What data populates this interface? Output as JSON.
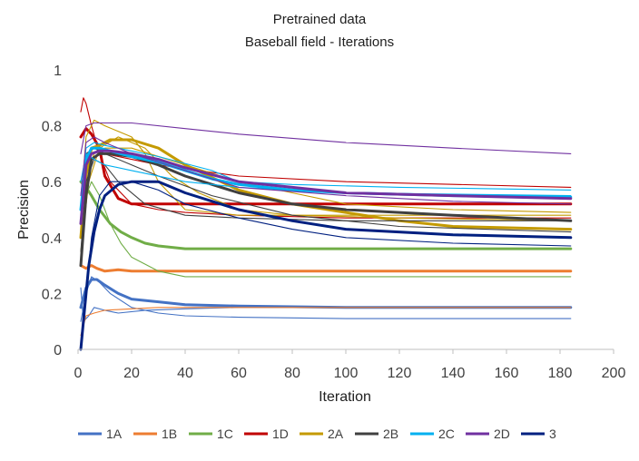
{
  "chart_data": {
    "type": "line",
    "title": "Pretrained data",
    "subtitle": "Baseball field - Iterations",
    "xlabel": "Iteration",
    "ylabel": "Precision",
    "xlim": [
      0,
      200
    ],
    "ylim": [
      0,
      1
    ],
    "x_ticks": [
      "0",
      "20",
      "40",
      "60",
      "80",
      "100",
      "120",
      "140",
      "160",
      "180",
      "200"
    ],
    "y_ticks": [
      "0",
      "0.2",
      "0.4",
      "0.6",
      "0.8",
      "1"
    ],
    "grid": false,
    "legend_position": "bottom",
    "series": [
      {
        "name": "1A",
        "color": "#4472C4",
        "runs": [
          {
            "x": [
              1,
              3,
              5,
              7,
              10,
              15,
              20,
              30,
              40,
              60,
              100,
              140,
              184
            ],
            "y": [
              0.15,
              0.22,
              0.25,
              0.25,
              0.23,
              0.2,
              0.18,
              0.17,
              0.16,
              0.155,
              0.15,
              0.15,
              0.15
            ],
            "emphasis": true
          },
          {
            "x": [
              1,
              3,
              5,
              8,
              12,
              20,
              30,
              40,
              60,
              100,
              184
            ],
            "y": [
              0.1,
              0.2,
              0.26,
              0.24,
              0.2,
              0.15,
              0.13,
              0.12,
              0.115,
              0.11,
              0.11
            ]
          },
          {
            "x": [
              1,
              2,
              4,
              6,
              10,
              15,
              25,
              40,
              60,
              100,
              184
            ],
            "y": [
              0.22,
              0.1,
              0.12,
              0.15,
              0.14,
              0.13,
              0.14,
              0.145,
              0.15,
              0.15,
              0.15
            ]
          }
        ]
      },
      {
        "name": "1B",
        "color": "#ED7D31",
        "runs": [
          {
            "x": [
              1,
              3,
              5,
              7,
              10,
              15,
              20,
              30,
              50,
              100,
              184
            ],
            "y": [
              0.3,
              0.29,
              0.3,
              0.29,
              0.28,
              0.285,
              0.28,
              0.28,
              0.28,
              0.28,
              0.28
            ],
            "emphasis": true
          },
          {
            "x": [
              1,
              3,
              6,
              10,
              20,
              30,
              50,
              100,
              184
            ],
            "y": [
              0.05,
              0.12,
              0.13,
              0.14,
              0.145,
              0.15,
              0.15,
              0.15,
              0.15
            ]
          }
        ]
      },
      {
        "name": "1C",
        "color": "#70AD47",
        "runs": [
          {
            "x": [
              1,
              3,
              5,
              8,
              12,
              16,
              20,
              25,
              30,
              40,
              60,
              100,
              184
            ],
            "y": [
              0.6,
              0.58,
              0.55,
              0.5,
              0.45,
              0.42,
              0.4,
              0.38,
              0.37,
              0.36,
              0.36,
              0.36,
              0.36
            ],
            "emphasis": true
          },
          {
            "x": [
              1,
              3,
              5,
              8,
              12,
              16,
              20,
              30,
              40,
              50,
              60,
              184
            ],
            "y": [
              0.3,
              0.55,
              0.6,
              0.55,
              0.45,
              0.38,
              0.33,
              0.28,
              0.26,
              0.26,
              0.26,
              0.26
            ]
          }
        ]
      },
      {
        "name": "1D",
        "color": "#C00000",
        "runs": [
          {
            "x": [
              1,
              3,
              5,
              8,
              10,
              15,
              20,
              30,
              50,
              100,
              184
            ],
            "y": [
              0.76,
              0.79,
              0.77,
              0.72,
              0.62,
              0.54,
              0.52,
              0.52,
              0.52,
              0.52,
              0.52
            ],
            "emphasis": true
          },
          {
            "x": [
              1,
              2,
              3,
              5,
              8,
              12,
              20,
              30,
              40,
              60,
              100,
              184
            ],
            "y": [
              0.85,
              0.9,
              0.88,
              0.8,
              0.7,
              0.6,
              0.52,
              0.5,
              0.49,
              0.48,
              0.47,
              0.47
            ]
          },
          {
            "x": [
              1,
              3,
              6,
              10,
              20,
              30,
              60,
              100,
              184
            ],
            "y": [
              0.4,
              0.7,
              0.72,
              0.7,
              0.68,
              0.66,
              0.62,
              0.6,
              0.58
            ]
          }
        ]
      },
      {
        "name": "2A",
        "color": "#C49A00",
        "runs": [
          {
            "x": [
              1,
              3,
              5,
              8,
              12,
              20,
              30,
              40,
              60,
              80,
              100,
              120,
              140,
              184
            ],
            "y": [
              0.4,
              0.62,
              0.72,
              0.73,
              0.75,
              0.75,
              0.72,
              0.66,
              0.57,
              0.52,
              0.49,
              0.46,
              0.44,
              0.43
            ],
            "emphasis": true
          },
          {
            "x": [
              1,
              3,
              6,
              10,
              15,
              20,
              25,
              30,
              40,
              60,
              100,
              184
            ],
            "y": [
              0.5,
              0.76,
              0.82,
              0.8,
              0.78,
              0.76,
              0.7,
              0.6,
              0.5,
              0.48,
              0.48,
              0.48
            ]
          },
          {
            "x": [
              1,
              3,
              6,
              10,
              20,
              40,
              60,
              80,
              100,
              140,
              184
            ],
            "y": [
              0.45,
              0.62,
              0.7,
              0.72,
              0.72,
              0.66,
              0.6,
              0.56,
              0.52,
              0.5,
              0.49
            ]
          },
          {
            "x": [
              1,
              4,
              8,
              15,
              25,
              35,
              45,
              60,
              80,
              120,
              184
            ],
            "y": [
              0.35,
              0.6,
              0.72,
              0.76,
              0.72,
              0.62,
              0.56,
              0.5,
              0.48,
              0.47,
              0.46
            ]
          }
        ]
      },
      {
        "name": "2B",
        "color": "#404040",
        "runs": [
          {
            "x": [
              1,
              3,
              5,
              8,
              12,
              20,
              30,
              40,
              60,
              80,
              100,
              140,
              184
            ],
            "y": [
              0.3,
              0.55,
              0.68,
              0.7,
              0.7,
              0.69,
              0.66,
              0.62,
              0.56,
              0.52,
              0.5,
              0.48,
              0.46
            ],
            "emphasis": true
          },
          {
            "x": [
              1,
              3,
              6,
              10,
              20,
              30,
              50,
              80,
              120,
              184
            ],
            "y": [
              0.5,
              0.7,
              0.72,
              0.7,
              0.66,
              0.62,
              0.55,
              0.48,
              0.44,
              0.42
            ]
          },
          {
            "x": [
              1,
              3,
              6,
              10,
              15,
              25,
              40,
              60,
              100,
              184
            ],
            "y": [
              0.35,
              0.6,
              0.68,
              0.66,
              0.6,
              0.52,
              0.48,
              0.47,
              0.46,
              0.46
            ]
          }
        ]
      },
      {
        "name": "2C",
        "color": "#00B0F0",
        "runs": [
          {
            "x": [
              1,
              3,
              5,
              8,
              12,
              20,
              30,
              40,
              50,
              60,
              80,
              100,
              140,
              184
            ],
            "y": [
              0.5,
              0.68,
              0.72,
              0.72,
              0.71,
              0.69,
              0.67,
              0.64,
              0.61,
              0.59,
              0.57,
              0.56,
              0.55,
              0.545
            ],
            "emphasis": true
          },
          {
            "x": [
              1,
              3,
              6,
              10,
              20,
              30,
              50,
              60,
              80,
              120,
              184
            ],
            "y": [
              0.55,
              0.72,
              0.74,
              0.73,
              0.71,
              0.69,
              0.64,
              0.6,
              0.59,
              0.58,
              0.57
            ]
          },
          {
            "x": [
              1,
              3,
              6,
              10,
              20,
              40,
              60,
              100,
              184
            ],
            "y": [
              0.6,
              0.7,
              0.68,
              0.66,
              0.64,
              0.6,
              0.58,
              0.56,
              0.55
            ]
          }
        ]
      },
      {
        "name": "2D",
        "color": "#7030A0",
        "runs": [
          {
            "x": [
              1,
              3,
              5,
              8,
              12,
              20,
              30,
              40,
              60,
              80,
              100,
              140,
              184
            ],
            "y": [
              0.45,
              0.66,
              0.7,
              0.71,
              0.71,
              0.7,
              0.68,
              0.65,
              0.6,
              0.58,
              0.56,
              0.55,
              0.54
            ],
            "emphasis": true
          },
          {
            "x": [
              1,
              3,
              6,
              10,
              20,
              40,
              60,
              100,
              140,
              184
            ],
            "y": [
              0.7,
              0.8,
              0.81,
              0.81,
              0.81,
              0.79,
              0.77,
              0.74,
              0.72,
              0.7
            ]
          },
          {
            "x": [
              1,
              3,
              6,
              10,
              20,
              40,
              60,
              100,
              140,
              184
            ],
            "y": [
              0.55,
              0.74,
              0.76,
              0.74,
              0.7,
              0.64,
              0.58,
              0.55,
              0.53,
              0.52
            ]
          }
        ]
      },
      {
        "name": "3",
        "color": "#002080",
        "runs": [
          {
            "x": [
              1,
              2,
              4,
              6,
              8,
              10,
              15,
              20,
              30,
              40,
              60,
              80,
              100,
              140,
              184
            ],
            "y": [
              0.0,
              0.1,
              0.3,
              0.42,
              0.5,
              0.55,
              0.59,
              0.6,
              0.6,
              0.56,
              0.5,
              0.46,
              0.43,
              0.41,
              0.4
            ],
            "emphasis": true
          },
          {
            "x": [
              1,
              3,
              5,
              8,
              12,
              20,
              30,
              40,
              60,
              80,
              100,
              140,
              184
            ],
            "y": [
              0.0,
              0.2,
              0.4,
              0.55,
              0.6,
              0.6,
              0.57,
              0.52,
              0.47,
              0.43,
              0.4,
              0.38,
              0.37
            ]
          }
        ]
      }
    ]
  }
}
